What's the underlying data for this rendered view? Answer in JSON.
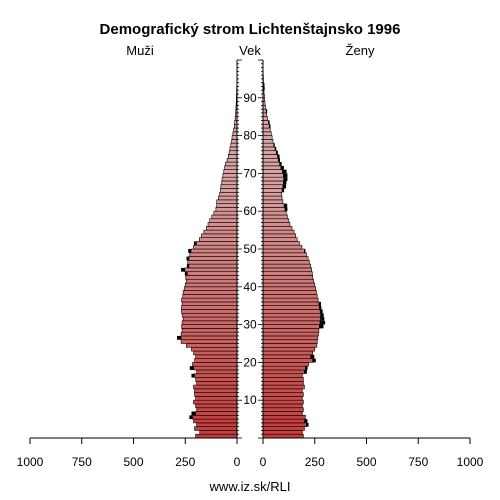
{
  "chart_data": {
    "type": "bar",
    "title": "Demografický strom Lichtenštajnsko 1996",
    "left_label": "Muži",
    "center_label": "Vek",
    "right_label": "Ženy",
    "footer": "www.iz.sk/RLI",
    "age_ticks": [
      "10",
      "20",
      "30",
      "40",
      "50",
      "60",
      "70",
      "80",
      "90"
    ],
    "x_ticks_left": [
      "1000",
      "750",
      "500",
      "250",
      "0"
    ],
    "x_ticks_right": [
      "0",
      "250",
      "500",
      "750",
      "1000"
    ],
    "xlim": [
      0,
      1000
    ],
    "age_range": [
      0,
      100
    ],
    "colors": {
      "male_young": "#c43b3b",
      "male_old": "#d9a3a3",
      "female_young": "#c43b3b",
      "female_old": "#d9a3a3",
      "outline": "#000000"
    },
    "series": [
      {
        "name": "Muži",
        "values": [
          200,
          180,
          205,
          195,
          210,
          215,
          200,
          195,
          200,
          210,
          200,
          205,
          205,
          210,
          195,
          200,
          205,
          195,
          210,
          215,
          205,
          200,
          210,
          220,
          245,
          270,
          270,
          270,
          265,
          268,
          265,
          260,
          265,
          268,
          268,
          265,
          268,
          262,
          260,
          255,
          250,
          245,
          248,
          240,
          252,
          232,
          238,
          232,
          228,
          222,
          210,
          196,
          182,
          172,
          160,
          148,
          140,
          132,
          122,
          112,
          102,
          98,
          98,
          90,
          84,
          80,
          78,
          74,
          72,
          68,
          64,
          60,
          56,
          48,
          42,
          38,
          34,
          30,
          26,
          24,
          20,
          16,
          13,
          11,
          9,
          7,
          6,
          5,
          4,
          3,
          3,
          2,
          2,
          1,
          1,
          1,
          1,
          0,
          0,
          0
        ]
      },
      {
        "name": "Ženy",
        "values": [
          195,
          190,
          200,
          210,
          200,
          205,
          190,
          195,
          190,
          195,
          190,
          195,
          190,
          200,
          195,
          195,
          190,
          200,
          205,
          220,
          240,
          230,
          240,
          250,
          260,
          262,
          265,
          268,
          270,
          272,
          275,
          278,
          278,
          276,
          272,
          270,
          266,
          262,
          258,
          255,
          250,
          245,
          240,
          238,
          235,
          230,
          224,
          218,
          210,
          200,
          188,
          176,
          165,
          158,
          150,
          140,
          130,
          125,
          118,
          112,
          106,
          102,
          96,
          92,
          90,
          92,
          96,
          98,
          100,
          98,
          94,
          86,
          80,
          74,
          70,
          64,
          58,
          52,
          48,
          44,
          40,
          35,
          30,
          26,
          22,
          18,
          15,
          12,
          10,
          8,
          7,
          5,
          4,
          3,
          2,
          2,
          1,
          1,
          0,
          0
        ]
      }
    ],
    "highlights": {
      "Muži": [
        0,
        0,
        0,
        0,
        0,
        15,
        20,
        0,
        0,
        0,
        0,
        0,
        0,
        0,
        0,
        0,
        15,
        0,
        18,
        0,
        0,
        0,
        0,
        0,
        0,
        0,
        20,
        0,
        0,
        0,
        0,
        0,
        0,
        0,
        0,
        0,
        0,
        0,
        0,
        0,
        0,
        0,
        0,
        12,
        18,
        10,
        0,
        12,
        0,
        14,
        0,
        12,
        0,
        0,
        0,
        0,
        0,
        0,
        0,
        0,
        0,
        0,
        0,
        0,
        0,
        0,
        0,
        0,
        0,
        0,
        0,
        0,
        0,
        0,
        0,
        0,
        0,
        0,
        0,
        0,
        0,
        0,
        0,
        0,
        0,
        0,
        0,
        0,
        0,
        0,
        0,
        0,
        0,
        0,
        0,
        0,
        0,
        0,
        0,
        0
      ],
      "Ženy": [
        0,
        0,
        0,
        10,
        15,
        0,
        0,
        0,
        0,
        0,
        0,
        0,
        0,
        0,
        0,
        0,
        0,
        12,
        10,
        0,
        15,
        18,
        0,
        0,
        0,
        0,
        0,
        0,
        0,
        20,
        25,
        18,
        15,
        12,
        10,
        10,
        0,
        0,
        0,
        0,
        0,
        0,
        0,
        0,
        0,
        0,
        0,
        0,
        0,
        5,
        0,
        0,
        0,
        0,
        0,
        0,
        0,
        0,
        0,
        0,
        12,
        15,
        0,
        0,
        0,
        10,
        15,
        15,
        18,
        20,
        20,
        15,
        10,
        8,
        10,
        8,
        6,
        5,
        0,
        0,
        0,
        0,
        6,
        6,
        0,
        0,
        5,
        0,
        0,
        0,
        0,
        0,
        4,
        4,
        0,
        0,
        0,
        0,
        0,
        0
      ]
    }
  }
}
